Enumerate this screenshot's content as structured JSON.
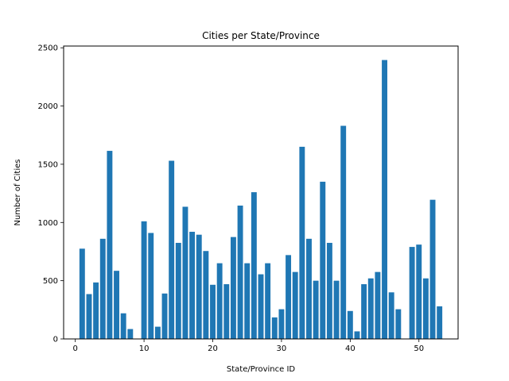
{
  "chart_data": {
    "type": "bar",
    "title": "Cities per State/Province",
    "xlabel": "State/Province ID",
    "ylabel": "Number of Cities",
    "xlim": [
      -1.7,
      55.7
    ],
    "ylim": [
      0,
      2515
    ],
    "xticks": [
      0,
      10,
      20,
      30,
      40,
      50
    ],
    "yticks": [
      0,
      500,
      1000,
      1500,
      2000,
      2500
    ],
    "grid": false,
    "bar_color": "#1f77b4",
    "x": [
      1,
      2,
      3,
      4,
      5,
      6,
      7,
      8,
      9,
      10,
      11,
      12,
      13,
      14,
      15,
      16,
      17,
      18,
      19,
      20,
      21,
      22,
      23,
      24,
      25,
      26,
      27,
      28,
      29,
      30,
      31,
      32,
      33,
      34,
      35,
      36,
      37,
      38,
      39,
      40,
      41,
      42,
      43,
      44,
      45,
      46,
      47,
      48,
      49,
      50,
      51,
      52,
      53
    ],
    "values": [
      775,
      385,
      485,
      860,
      1615,
      585,
      220,
      85,
      0,
      1010,
      910,
      105,
      390,
      1530,
      825,
      1135,
      920,
      895,
      755,
      465,
      650,
      470,
      875,
      1145,
      650,
      1260,
      555,
      650,
      185,
      255,
      720,
      575,
      1650,
      860,
      500,
      1350,
      825,
      500,
      1830,
      240,
      65,
      470,
      520,
      575,
      2395,
      400,
      255,
      0,
      790,
      810,
      520,
      1195,
      280
    ]
  }
}
